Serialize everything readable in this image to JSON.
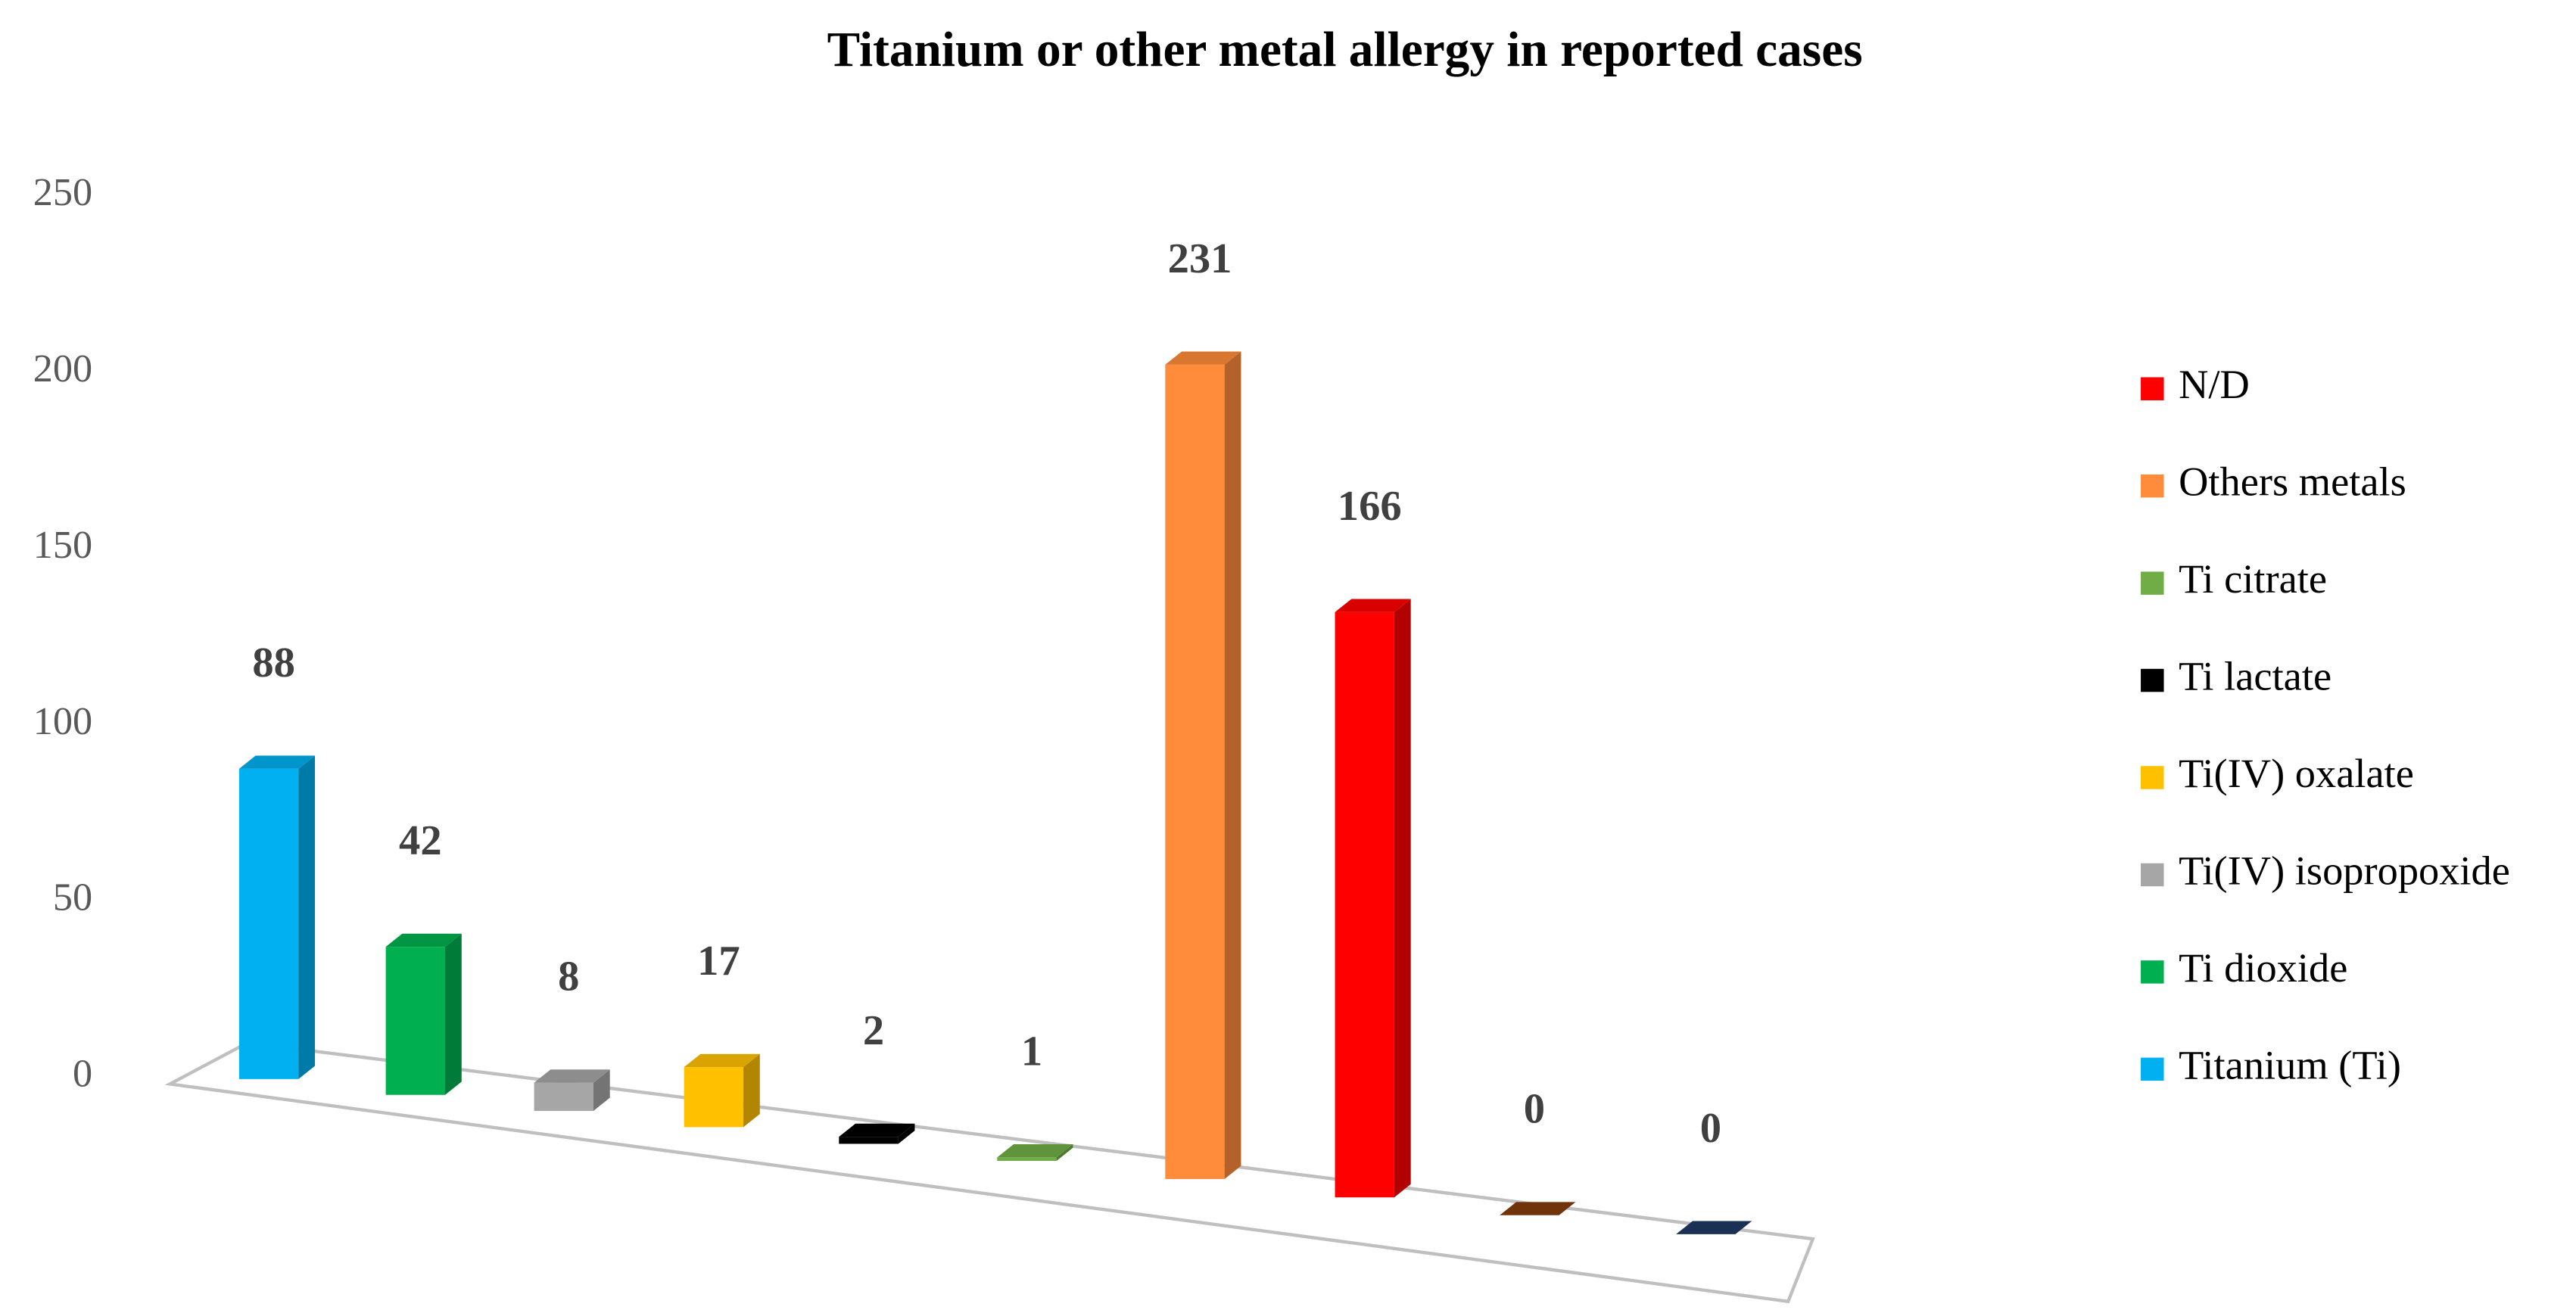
{
  "chart_data": {
    "type": "bar3d",
    "title": "Titanium or other metal allergy in reported cases",
    "categories": [
      "Titanium (Ti)",
      "Ti dioxide",
      "Ti(IV) isopropoxide",
      "Ti(IV) oxalate",
      "Ti lactate",
      "Ti citrate",
      "Others metals",
      "N/D",
      null,
      null
    ],
    "values": [
      88,
      42,
      8,
      17,
      2,
      1,
      231,
      166,
      0,
      0
    ],
    "colors": [
      "#00b0f0",
      "#00b050",
      "#a6a6a6",
      "#ffc000",
      "#000000",
      "#70ad47",
      "#ff8c3a",
      "#ff0000",
      "#843c0c",
      "#1f3864"
    ],
    "ylim": [
      0,
      250
    ],
    "yticks": [
      0,
      50,
      100,
      150,
      200,
      250
    ],
    "legend": "right"
  }
}
